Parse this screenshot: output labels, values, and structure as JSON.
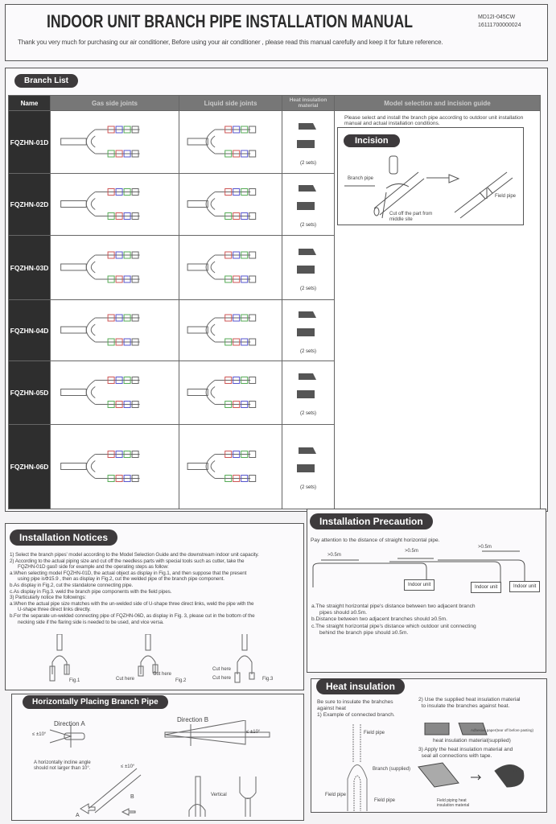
{
  "header": {
    "title": "INDOOR UNIT BRANCH PIPE INSTALLATION MANUAL",
    "code1": "MD12I-045CW",
    "code2": "16111700000024",
    "thanks": "Thank you very much for purchasing our air conditioner,  Before using your air conditioner , please read this manual carefully and keep it for future reference."
  },
  "branch_list": {
    "title": "Branch List",
    "columns": [
      "Name",
      "Gas side joints",
      "Liquid side joints",
      "Heat insulation material",
      "Model selection and incision guide"
    ],
    "rows": [
      {
        "name": "FQZHN-01D",
        "sets": "(2 sets)"
      },
      {
        "name": "FQZHN-02D",
        "sets": "(2 sets)"
      },
      {
        "name": "FQZHN-03D",
        "sets": "(2 sets)"
      },
      {
        "name": "FQZHN-04D",
        "sets": "(2 sets)"
      },
      {
        "name": "FQZHN-05D",
        "sets": "(2 sets)"
      },
      {
        "name": "FQZHN-06D",
        "sets": "(2 sets)"
      }
    ],
    "guide_text": "Please select and install the branch pipe according to outdoor unit installation manual and actual installation conditions.",
    "incision": {
      "title": "Incision",
      "branch_pipe": "Branch pipe",
      "cut_off": "Cut off the part from middle site",
      "field_pipe": "Field pipe"
    }
  },
  "notices": {
    "title": "Installation Notices",
    "lines": [
      "1) Select the branch pipes' model according to the Model Selection Guide and the downstream indoor unit capacity.",
      "2) According to the actual piping size and cut off the needless parts with special tools such as cutter, take the",
      "FQZHN-01D gas0 side for example and the operating steps as follow:",
      "a.When selecting model FQZHN-01D, the actual object as display in Fig.1, and then suppose that the present",
      "using pipe isΦ15.9 , then as display in Fig.2, cut the welded pipe of the branch pipe component.",
      "b.As display in Fig.2, cut the standalone connecting pipe.",
      "c.As display in Fig.3. weld the branch pipe components with the field pipes.",
      "3) Particularly notice the followings:",
      "a.When the actual pipe size matches with the un-welded side of U-shape three direct links, weld the pipe with the",
      "U-shape three direct links directly.",
      "b.For the separate un-welded connecting pipe of FQZHN-06D, as display in Fig. 3, please cut in the bottom of the",
      "necking side if the flaring side is needed to be used, and vice versa."
    ],
    "fig1": "Fig.1",
    "fig2": "Fig.2",
    "fig3": "Fig.3",
    "cut_here": "Cut here"
  },
  "precaution": {
    "title": "Installation Precaution",
    "intro": "Pay attention to the distance of straight horizontal pipe.",
    "dist": ">0.5m",
    "indoor_unit": "Indoor unit",
    "notes": [
      "a.The straight horizontal pipe's distance between two adjacent branch",
      "pipes should ≥0.5m.",
      "b.Distance between two adjacent branches should ≥0.5m.",
      "c.The straight horizontal pipe's distance which outdoor unit connecting",
      "behind the branch pipe should ≥0.5m."
    ]
  },
  "horizontal": {
    "title": "Horizontally Placing Branch Pipe",
    "dir_a": "Direction A",
    "dir_b": "Direction B",
    "angle": "≤ ±10°",
    "incline": "A horizontally incline angle should not larger than 10°.",
    "a": "A",
    "b": "B",
    "vertical": "Vertical"
  },
  "heat": {
    "title": "Heat insulation",
    "intro1": "Be sure to insulate the brahches",
    "intro2": "against heat",
    "step1": "1) Example of connected branch.",
    "field_pipe": "Field pipe",
    "branch_supplied": "Branch (supplied)",
    "step2a": "2) Use the supplied heat insulation material",
    "step2b": "to insulate the branches against heat.",
    "adhesive": "Adhesive paper(tear off before pasting)",
    "material": "heat insulation material(supplied)",
    "step3a": "3) Apply the heat insulation material and",
    "step3b": "seal all connections with tape.",
    "tape": "Tape",
    "field_heat": "Field piping heat insulation material"
  }
}
